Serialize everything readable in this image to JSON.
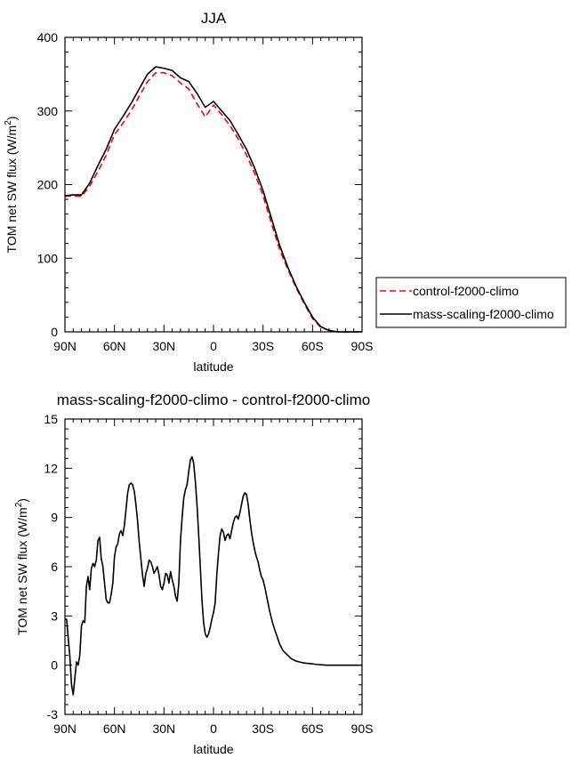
{
  "chart_data": [
    {
      "type": "line",
      "title": "JJA",
      "xlabel": "latitude",
      "ylabel": "TOM net SW flux (W/m",
      "ylabel_sup": "2",
      "ylabel_end": ")",
      "xlim": [
        90,
        -90
      ],
      "ylim": [
        0,
        400
      ],
      "x_ticks": [
        90,
        60,
        30,
        0,
        -30,
        -60,
        -90
      ],
      "x_tick_labels": [
        "90N",
        "60N",
        "30N",
        "0",
        "30S",
        "60S",
        "90S"
      ],
      "y_ticks": [
        0,
        100,
        200,
        300,
        400
      ],
      "y_tick_labels": [
        "0",
        "100",
        "200",
        "300",
        "400"
      ],
      "legend": {
        "placement": "right",
        "entries": [
          {
            "label": "control-f2000-climo",
            "color": "#ff0000",
            "dash": "dashed"
          },
          {
            "label": "mass-scaling-f2000-climo",
            "color": "#000000",
            "dash": "solid"
          }
        ]
      },
      "series": [
        {
          "name": "control-f2000-climo",
          "color": "#ff0000",
          "dash": "dashed",
          "x": [
            90,
            85,
            80,
            75,
            70,
            65,
            60,
            55,
            50,
            45,
            40,
            35,
            30,
            25,
            20,
            15,
            10,
            5,
            0,
            -5,
            -10,
            -15,
            -20,
            -25,
            -30,
            -35,
            -40,
            -45,
            -50,
            -55,
            -60,
            -65,
            -70,
            -75,
            -80,
            -85,
            -90
          ],
          "y": [
            184,
            185,
            184,
            198,
            218,
            240,
            268,
            283,
            300,
            320,
            340,
            352,
            352,
            348,
            338,
            330,
            310,
            292,
            308,
            295,
            280,
            262,
            240,
            215,
            185,
            148,
            112,
            85,
            60,
            38,
            18,
            6,
            2,
            0,
            0,
            0,
            0
          ]
        },
        {
          "name": "mass-scaling-f2000-climo",
          "color": "#000000",
          "dash": "solid",
          "x": [
            90,
            85,
            80,
            75,
            70,
            65,
            60,
            55,
            50,
            45,
            40,
            35,
            30,
            25,
            20,
            15,
            10,
            5,
            0,
            -5,
            -10,
            -15,
            -20,
            -25,
            -30,
            -35,
            -40,
            -45,
            -50,
            -55,
            -60,
            -65,
            -70,
            -75,
            -80,
            -85,
            -90
          ],
          "y": [
            185,
            186,
            186,
            202,
            226,
            248,
            275,
            292,
            310,
            330,
            350,
            360,
            358,
            355,
            345,
            340,
            324,
            305,
            313,
            300,
            287,
            268,
            248,
            222,
            192,
            155,
            118,
            88,
            62,
            40,
            20,
            7,
            2,
            0,
            0,
            0,
            0
          ]
        }
      ]
    },
    {
      "type": "line",
      "title": "mass-scaling-f2000-climo - control-f2000-climo",
      "xlabel": "latitude",
      "ylabel": "TOM net SW flux (W/m",
      "ylabel_sup": "2",
      "ylabel_end": ")",
      "xlim": [
        90,
        -90
      ],
      "ylim": [
        -3,
        15
      ],
      "x_ticks": [
        90,
        60,
        30,
        0,
        -30,
        -60,
        -90
      ],
      "x_tick_labels": [
        "90N",
        "60N",
        "30N",
        "0",
        "30S",
        "60S",
        "90S"
      ],
      "y_ticks": [
        -3,
        0,
        3,
        6,
        9,
        12,
        15
      ],
      "y_tick_labels": [
        "-3",
        "0",
        "3",
        "6",
        "9",
        "12",
        "15"
      ],
      "series": [
        {
          "color": "#000000",
          "dash": "solid",
          "x": [
            90,
            89,
            87,
            86,
            85,
            84,
            83,
            82,
            81,
            80,
            79,
            78,
            77,
            76,
            75,
            74,
            73,
            72,
            71,
            70,
            69,
            68,
            67,
            66,
            65,
            64,
            63,
            62,
            61,
            60,
            59,
            58,
            57,
            56,
            55,
            54,
            53,
            52,
            51,
            50,
            49,
            48,
            47,
            46,
            45,
            44,
            43,
            42,
            41,
            40,
            39,
            38,
            37,
            36,
            35,
            34,
            33,
            32,
            31,
            30,
            29,
            28,
            27,
            26,
            25,
            24,
            23,
            22,
            21,
            20,
            19,
            18,
            17,
            16,
            15,
            14,
            13,
            12,
            11,
            10,
            9,
            8,
            7,
            6,
            5,
            4,
            3,
            2,
            1,
            0,
            -1,
            -2,
            -3,
            -4,
            -5,
            -6,
            -7,
            -8,
            -9,
            -10,
            -11,
            -12,
            -13,
            -14,
            -15,
            -16,
            -17,
            -18,
            -19,
            -20,
            -21,
            -22,
            -23,
            -24,
            -25,
            -26,
            -27,
            -28,
            -29,
            -30,
            -31,
            -32,
            -33,
            -34,
            -35,
            -36,
            -37,
            -38,
            -39,
            -40,
            -41,
            -42,
            -43,
            -44,
            -45,
            -46,
            -47,
            -48,
            -49,
            -50,
            -52,
            -54,
            -56,
            -58,
            -60,
            -62,
            -64,
            -66,
            -68,
            -70,
            -75,
            -80,
            -85,
            -90
          ],
          "y": [
            2.8,
            2.8,
            0.5,
            -1.2,
            -1.8,
            -0.8,
            0.2,
            0.0,
            0.6,
            2.4,
            2.7,
            2.6,
            4.8,
            5.4,
            4.6,
            5.9,
            6.2,
            6.0,
            6.4,
            7.6,
            7.8,
            6.5,
            6.0,
            5.0,
            4.0,
            3.8,
            3.8,
            4.3,
            5.0,
            6.6,
            7.2,
            7.4,
            8.0,
            8.2,
            7.9,
            8.5,
            9.5,
            10.5,
            11.0,
            11.1,
            11.0,
            10.6,
            9.8,
            8.8,
            7.5,
            6.5,
            5.5,
            4.8,
            5.6,
            5.9,
            6.4,
            6.3,
            6.0,
            5.6,
            5.8,
            6.0,
            5.5,
            4.8,
            4.6,
            5.0,
            5.6,
            5.5,
            5.0,
            5.7,
            5.2,
            4.8,
            4.2,
            3.9,
            5.0,
            7.6,
            9.0,
            10.2,
            10.7,
            11.0,
            11.8,
            12.5,
            12.7,
            12.3,
            11.2,
            9.8,
            8.0,
            6.0,
            4.0,
            2.6,
            1.9,
            1.7,
            1.9,
            2.3,
            2.8,
            3.2,
            3.8,
            5.5,
            6.8,
            7.9,
            8.3,
            8.1,
            7.6,
            7.9,
            8.0,
            7.7,
            8.2,
            8.7,
            9.0,
            9.1,
            8.9,
            9.3,
            9.8,
            10.3,
            10.5,
            10.4,
            9.8,
            8.9,
            8.1,
            7.5,
            7.0,
            6.6,
            6.3,
            5.8,
            5.4,
            5.2,
            4.8,
            4.3,
            3.8,
            3.3,
            2.9,
            2.5,
            2.2,
            1.9,
            1.6,
            1.3,
            1.1,
            0.9,
            0.8,
            0.7,
            0.6,
            0.5,
            0.4,
            0.35,
            0.3,
            0.25,
            0.2,
            0.15,
            0.12,
            0.1,
            0.08,
            0.05,
            0.03,
            0.02,
            0.0,
            0.0,
            0.0,
            0.0,
            0.0,
            0.0
          ]
        }
      ]
    }
  ]
}
